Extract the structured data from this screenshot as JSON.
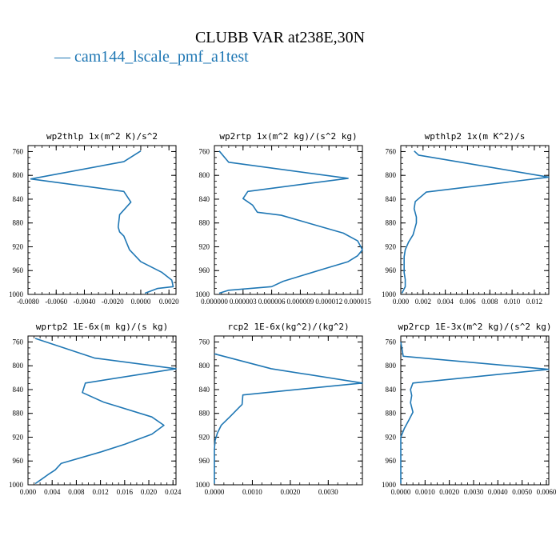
{
  "figure": {
    "title": "CLUBB VAR at238E,30N",
    "legend": {
      "label": "— cam144_lscale_pmf_a1test",
      "color": "#1f77b4"
    }
  },
  "chart_data": [
    {
      "type": "line",
      "title": "wp2thlp  1x(m^2 K)/s^2",
      "xlim": [
        -0.008,
        0.0025
      ],
      "ylim": [
        1000,
        750
      ],
      "xticks": [
        -0.008,
        -0.006,
        -0.004,
        -0.002,
        0.0,
        0.002
      ],
      "xtick_labels": [
        "-0.0080",
        "-0.0060",
        "-0.0040",
        "-0.0020",
        "0.0000",
        "0.0020"
      ],
      "yticks": [
        760,
        800,
        840,
        880,
        920,
        960,
        1000
      ],
      "ytick_labels": [
        "760",
        "800",
        "840",
        "880",
        "920",
        "960",
        "1000"
      ],
      "series": [
        {
          "x": [
            0.0,
            -0.0012,
            -0.0078,
            -0.0012,
            -0.0007,
            -0.0015,
            -0.0016,
            -0.0015,
            -0.0012,
            -0.0008,
            0.0,
            0.0015,
            0.0022,
            0.0023,
            0.0012,
            0.0003
          ],
          "y": [
            759,
            777,
            806,
            827,
            845,
            866,
            887,
            895,
            902,
            925,
            945,
            963,
            976,
            987,
            990,
            998
          ]
        }
      ]
    },
    {
      "type": "line",
      "title": "wp2rtp  1x(m^2 kg)/(s^2 kg)",
      "xlim": [
        0.0,
        1.55e-05
      ],
      "ylim": [
        1000,
        750
      ],
      "xticks": [
        0.0,
        3e-06,
        6e-06,
        9e-06,
        1.2e-05,
        1.5e-05
      ],
      "xtick_labels": [
        "0.000000",
        "0.000003",
        "0.000006",
        "0.000009",
        "0.000012",
        "0.000015"
      ],
      "yticks": [
        760,
        800,
        840,
        880,
        920,
        960,
        1000
      ],
      "ytick_labels": [
        "760",
        "800",
        "840",
        "880",
        "920",
        "960",
        "1000"
      ],
      "series": [
        {
          "x": [
            5e-07,
            1.5e-06,
            1.4e-05,
            3.5e-06,
            3e-06,
            4e-06,
            4.5e-06,
            7e-06,
            1.35e-05,
            1.5e-05,
            1.55e-05,
            1.5e-05,
            1.4e-05,
            1.15e-05,
            7.2e-06,
            6e-06,
            1.5e-06,
            5e-07
          ],
          "y": [
            759,
            778,
            805,
            827,
            839,
            850,
            862,
            867,
            897,
            910,
            925,
            935,
            945,
            957,
            978,
            987,
            993,
            998
          ]
        }
      ]
    },
    {
      "type": "line",
      "title": "wpthlp2  1x(m K^2)/s",
      "xlim": [
        0.0,
        0.0133
      ],
      "ylim": [
        1000,
        750
      ],
      "xticks": [
        0.0,
        0.002,
        0.004,
        0.006,
        0.008,
        0.01,
        0.012
      ],
      "xtick_labels": [
        "0.000",
        "0.002",
        "0.004",
        "0.006",
        "0.008",
        "0.010",
        "0.012"
      ],
      "yticks": [
        760,
        800,
        840,
        880,
        920,
        960,
        1000
      ],
      "ytick_labels": [
        "760",
        "800",
        "840",
        "880",
        "920",
        "960",
        "1000"
      ],
      "series": [
        {
          "x": [
            0.0012,
            0.0016,
            0.0133,
            0.0023,
            0.0013,
            0.0012,
            0.0014,
            0.0014,
            0.0011,
            0.0007,
            0.0004,
            0.0003,
            0.0003,
            0.0003,
            0.0004,
            0.0004,
            0.0001
          ],
          "y": [
            759,
            766,
            803,
            828,
            844,
            856,
            870,
            880,
            900,
            912,
            925,
            937,
            950,
            963,
            975,
            987,
            998
          ]
        }
      ]
    },
    {
      "type": "line",
      "title": "wprtp2  1E-6x(m kg)/(s kg)",
      "xlim": [
        0.0,
        0.0245
      ],
      "ylim": [
        1000,
        750
      ],
      "xticks": [
        0.0,
        0.004,
        0.008,
        0.012,
        0.016,
        0.02,
        0.024
      ],
      "xtick_labels": [
        "0.000",
        "0.004",
        "0.008",
        "0.012",
        "0.016",
        "0.020",
        "0.024"
      ],
      "yticks": [
        760,
        800,
        840,
        880,
        920,
        960,
        1000
      ],
      "ytick_labels": [
        "760",
        "800",
        "840",
        "880",
        "920",
        "960",
        "1000"
      ],
      "series": [
        {
          "x": [
            0.0012,
            0.011,
            0.0245,
            0.0095,
            0.009,
            0.0125,
            0.0205,
            0.0225,
            0.0205,
            0.016,
            0.012,
            0.0055,
            0.0045,
            0.0033,
            0.0022,
            0.0012
          ],
          "y": [
            754,
            787,
            805,
            829,
            845,
            861,
            886,
            900,
            915,
            932,
            945,
            964,
            975,
            983,
            991,
            998
          ]
        }
      ]
    },
    {
      "type": "line",
      "title": "rcp2  1E-6x(kg^2)/(kg^2)",
      "xlim": [
        0.0,
        0.0039
      ],
      "ylim": [
        1000,
        750
      ],
      "xticks": [
        0.0,
        0.001,
        0.002,
        0.003
      ],
      "xtick_labels": [
        "0.0000",
        "0.0010",
        "0.0020",
        "0.0030"
      ],
      "yticks": [
        760,
        800,
        840,
        880,
        920,
        960,
        1000
      ],
      "ytick_labels": [
        "760",
        "800",
        "840",
        "880",
        "920",
        "960",
        "1000"
      ],
      "series": [
        {
          "x": [
            0.0,
            0.0015,
            0.0039,
            0.00075,
            0.00073,
            0.00065,
            0.00042,
            0.00018,
            8e-05,
            2e-05,
            0.0,
            0.0
          ],
          "y": [
            780,
            805,
            829,
            849,
            865,
            870,
            885,
            900,
            913,
            925,
            940,
            998
          ]
        }
      ]
    },
    {
      "type": "line",
      "title": "wp2rcp  1E-3x(m^2 kg)/(s^2 kg)",
      "xlim": [
        0.0,
        0.0061
      ],
      "ylim": [
        1000,
        750
      ],
      "xticks": [
        0.0,
        0.001,
        0.002,
        0.003,
        0.004,
        0.005,
        0.006
      ],
      "xtick_labels": [
        "0.0000",
        "0.0010",
        "0.0020",
        "0.0030",
        "0.0040",
        "0.0050",
        "0.0060"
      ],
      "yticks": [
        760,
        800,
        840,
        880,
        920,
        960,
        1000
      ],
      "ytick_labels": [
        "760",
        "800",
        "840",
        "880",
        "920",
        "960",
        "1000"
      ],
      "series": [
        {
          "x": [
            0.0,
            0.0001,
            0.0061,
            0.0005,
            0.0004,
            0.00045,
            0.0004,
            0.0005,
            0.00035,
            0.00015,
            0.0,
            0.0
          ],
          "y": [
            760,
            784,
            806,
            829,
            840,
            850,
            862,
            878,
            890,
            905,
            920,
            998
          ]
        }
      ]
    }
  ]
}
